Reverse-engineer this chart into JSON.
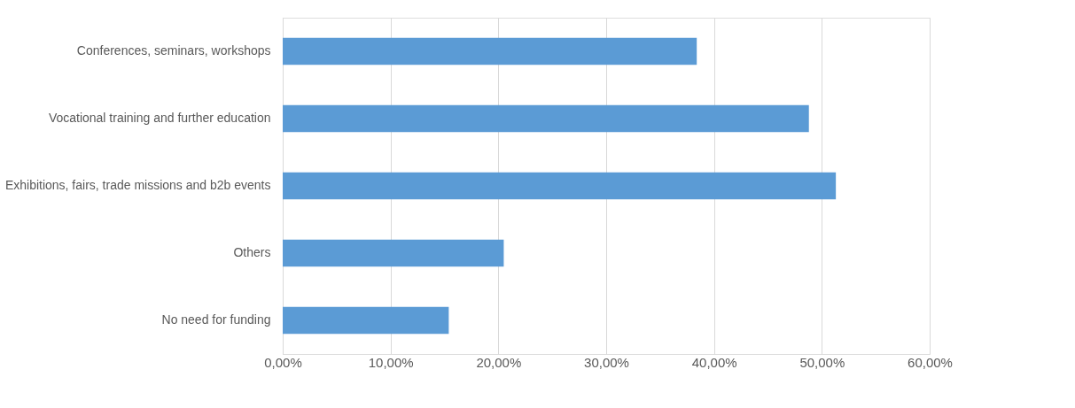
{
  "chart_data": {
    "type": "bar",
    "orientation": "horizontal",
    "categories": [
      "Conferences, seminars, workshops",
      "Vocational training and further education",
      "Exhibitions, fairs, trade missions and b2b events",
      "Others",
      "No need for funding"
    ],
    "values": [
      38.4,
      48.8,
      51.3,
      20.5,
      15.4
    ],
    "color": "#5b9bd5",
    "xlim": [
      0,
      60
    ],
    "xticks": [
      {
        "value": 0,
        "label": "0,00%"
      },
      {
        "value": 10,
        "label": "10,00%"
      },
      {
        "value": 20,
        "label": "20,00%"
      },
      {
        "value": 30,
        "label": "30,00%"
      },
      {
        "value": 40,
        "label": "40,00%"
      },
      {
        "value": 50,
        "label": "50,00%"
      },
      {
        "value": 60,
        "label": "60,00%"
      }
    ],
    "grid": "x"
  }
}
